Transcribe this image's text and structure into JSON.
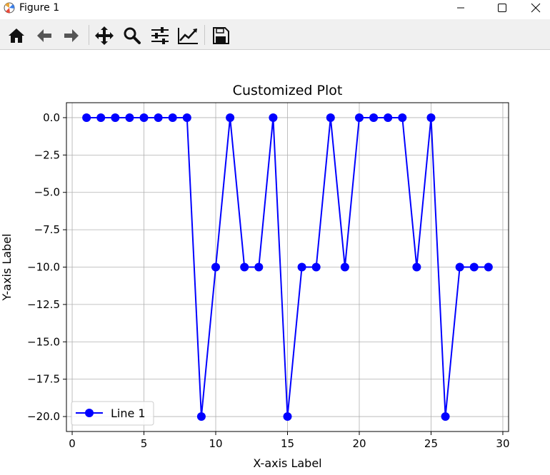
{
  "window": {
    "title": "Figure 1"
  },
  "toolbar": {
    "buttons": [
      {
        "name": "home",
        "icon": "home-icon"
      },
      {
        "name": "back",
        "icon": "arrow-left-icon"
      },
      {
        "name": "forward",
        "icon": "arrow-right-icon"
      },
      {
        "name": "pan",
        "icon": "move-icon"
      },
      {
        "name": "zoom",
        "icon": "magnifier-icon"
      },
      {
        "name": "configure-subplots",
        "icon": "sliders-icon"
      },
      {
        "name": "edit-axes",
        "icon": "line-chart-icon"
      },
      {
        "name": "save",
        "icon": "floppy-disk-icon"
      }
    ]
  },
  "chart_data": {
    "type": "line",
    "title": "Customized Plot",
    "xlabel": "X-axis Label",
    "ylabel": "Y-axis Label",
    "xlim": [
      -0.4,
      30.4
    ],
    "ylim": [
      -21,
      1
    ],
    "xticks": [
      0,
      5,
      10,
      15,
      20,
      25,
      30
    ],
    "xtick_labels": [
      "0",
      "5",
      "10",
      "15",
      "20",
      "25",
      "30"
    ],
    "yticks": [
      0,
      -2.5,
      -5,
      -7.5,
      -10,
      -12.5,
      -15,
      -17.5,
      -20
    ],
    "ytick_labels": [
      "0.0",
      "−2.5",
      "−5.0",
      "−7.5",
      "−10.0",
      "−12.5",
      "−15.0",
      "−17.5",
      "−20.0"
    ],
    "grid": true,
    "legend_position": "lower-left",
    "series": [
      {
        "name": "Line 1",
        "color": "#0000ff",
        "marker": "circle",
        "x": [
          1,
          2,
          3,
          4,
          5,
          6,
          7,
          8,
          9,
          10,
          11,
          12,
          13,
          14,
          15,
          16,
          17,
          18,
          19,
          20,
          21,
          22,
          23,
          24,
          25,
          26,
          27,
          28,
          29
        ],
        "y": [
          0,
          0,
          0,
          0,
          0,
          0,
          0,
          0,
          -20,
          -10,
          0,
          -10,
          -10,
          0,
          -20,
          -10,
          -10,
          0,
          -10,
          0,
          0,
          0,
          0,
          -10,
          0,
          -20,
          -10,
          -10,
          -10
        ]
      }
    ]
  }
}
